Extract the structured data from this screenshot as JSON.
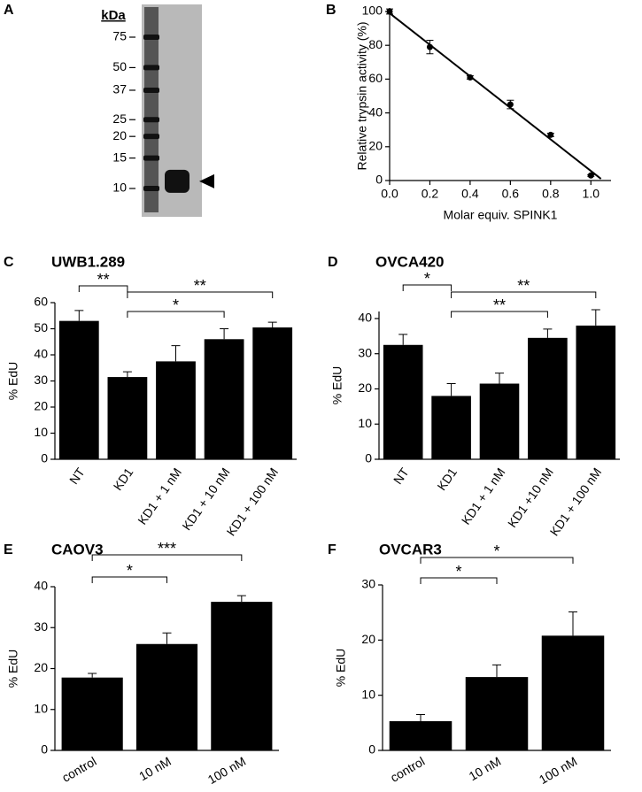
{
  "chart_data": [
    {
      "type": "gel",
      "label": "A",
      "y_label": "kDa",
      "log_scale": true,
      "ylim": [
        10,
        75
      ],
      "yticks": [
        75,
        50,
        37,
        25,
        20,
        15,
        10
      ],
      "band": 11
    },
    {
      "type": "scatter",
      "label": "B",
      "y_label": "Relative trypsin activity (%)",
      "x_label": "Molar equiv. SPINK1",
      "xlim": [
        0,
        1.1
      ],
      "xticks": [
        {
          "value": 0,
          "label": "0.0"
        },
        {
          "value": 0.2,
          "label": "0.2"
        },
        {
          "value": 0.4,
          "label": "0.4"
        },
        {
          "value": 0.6,
          "label": "0.6"
        },
        {
          "value": 0.8,
          "label": "0.8"
        },
        {
          "value": 1,
          "label": "1.0"
        }
      ],
      "ylim": [
        0,
        100
      ],
      "yticks": [
        0,
        20,
        40,
        60,
        80,
        100
      ],
      "color": "#000000",
      "x": [
        0,
        0.2,
        0.4,
        0.6,
        0.8,
        1.0
      ],
      "values": [
        100,
        79,
        61,
        45,
        27,
        3
      ],
      "errors": [
        1.5,
        4,
        1,
        2.5,
        1,
        0.5
      ],
      "fit": {
        "x": [
          0,
          1.05
        ],
        "values": [
          99,
          1
        ]
      }
    },
    {
      "type": "bar",
      "label": "C",
      "title": "UWB1.289",
      "y_label": "% EdU",
      "ylim": [
        0,
        60
      ],
      "yticks": [
        0,
        10,
        20,
        30,
        40,
        50,
        60
      ],
      "color": "#000000",
      "categories": [
        "NT",
        "KD1",
        "KD1 + 1 nM",
        "KD1 + 10 nM",
        "KD1 + 100 nM"
      ],
      "values": [
        53,
        31.5,
        37.5,
        46,
        50.5
      ],
      "errors": [
        4,
        2,
        6,
        4,
        2
      ],
      "significance": [
        {
          "from": "NT",
          "to": "KD1",
          "label": "**"
        },
        {
          "from": "KD1",
          "to": "KD1 + 100 nM",
          "label": "**"
        },
        {
          "from": "KD1",
          "to": "KD1 + 10 nM",
          "label": "*"
        }
      ]
    },
    {
      "type": "bar",
      "label": "D",
      "title": "OVCA420",
      "y_label": "% EdU",
      "ylim": [
        0,
        42
      ],
      "yticks": [
        0,
        10,
        20,
        30,
        40
      ],
      "color": "#000000",
      "categories": [
        "NT",
        "KD1",
        "KD1 + 1 nM",
        "KD1 +10 nM",
        "KD1 + 100 nM"
      ],
      "values": [
        32.5,
        18,
        21.5,
        34.5,
        38
      ],
      "errors": [
        3,
        3.5,
        3,
        2.5,
        4.5
      ],
      "significance": [
        {
          "from": "NT",
          "to": "KD1",
          "label": "*"
        },
        {
          "from": "KD1",
          "to": "KD1 + 100 nM",
          "label": "**"
        },
        {
          "from": "KD1",
          "to": "KD1 +10 nM",
          "label": "**"
        }
      ]
    },
    {
      "type": "bar",
      "label": "E",
      "title": "CAOV3",
      "y_label": "% EdU",
      "ylim": [
        0,
        40
      ],
      "yticks": [
        0,
        10,
        20,
        30,
        40
      ],
      "color": "#000000",
      "categories": [
        "control",
        "10 nM",
        "100 nM"
      ],
      "values": [
        17.8,
        26,
        36.3
      ],
      "errors": [
        1,
        2.7,
        1.5
      ],
      "significance": [
        {
          "from": "control",
          "to": "100 nM",
          "label": "***"
        },
        {
          "from": "control",
          "to": "10 nM",
          "label": "*"
        }
      ]
    },
    {
      "type": "bar",
      "label": "F",
      "title": "OVCAR3",
      "y_label": "% EdU",
      "ylim": [
        0,
        30
      ],
      "yticks": [
        0,
        10,
        20,
        30
      ],
      "color": "#000000",
      "categories": [
        "control",
        "10 nM",
        "100 nM"
      ],
      "values": [
        5.3,
        13.3,
        20.8
      ],
      "errors": [
        1.2,
        2.2,
        4.3
      ],
      "significance": [
        {
          "from": "control",
          "to": "100 nM",
          "label": "*"
        },
        {
          "from": "control",
          "to": "10 nM",
          "label": "*"
        }
      ]
    }
  ]
}
